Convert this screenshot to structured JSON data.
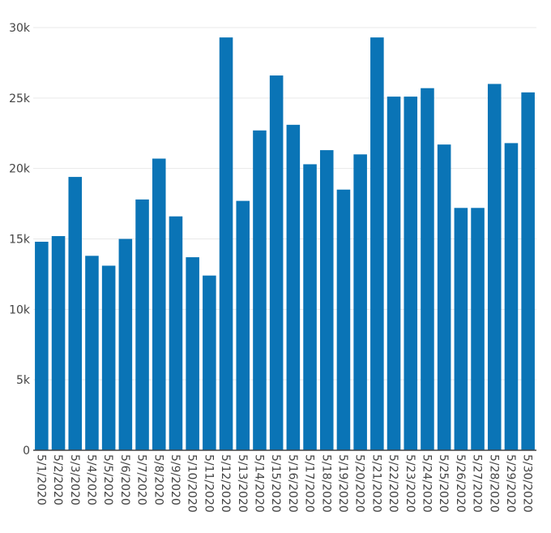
{
  "chart_data": {
    "type": "bar",
    "title": "",
    "xlabel": "",
    "ylabel": "",
    "ylim": [
      0,
      30000
    ],
    "grid": true,
    "legend": "none",
    "bar_color": "#0a74b6",
    "yticks": [
      0,
      5000,
      10000,
      15000,
      20000,
      25000,
      30000
    ],
    "ytick_labels": [
      "0",
      "5k",
      "10k",
      "15k",
      "20k",
      "25k",
      "30k"
    ],
    "categories": [
      "5/1/2020",
      "5/2/2020",
      "5/3/2020",
      "5/4/2020",
      "5/5/2020",
      "5/6/2020",
      "5/7/2020",
      "5/8/2020",
      "5/9/2020",
      "5/10/2020",
      "5/11/2020",
      "5/12/2020",
      "5/13/2020",
      "5/14/2020",
      "5/15/2020",
      "5/16/2020",
      "5/17/2020",
      "5/18/2020",
      "5/19/2020",
      "5/20/2020",
      "5/21/2020",
      "5/22/2020",
      "5/23/2020",
      "5/24/2020",
      "5/25/2020",
      "5/26/2020",
      "5/27/2020",
      "5/28/2020",
      "5/29/2020",
      "5/30/2020"
    ],
    "values": [
      14800,
      15200,
      19400,
      13800,
      13100,
      15000,
      17800,
      20700,
      16600,
      13700,
      12400,
      29300,
      17700,
      22700,
      26600,
      23100,
      20300,
      21300,
      18500,
      21000,
      29300,
      25100,
      25100,
      25700,
      21700,
      17200,
      17200,
      26000,
      21800,
      25400
    ]
  }
}
